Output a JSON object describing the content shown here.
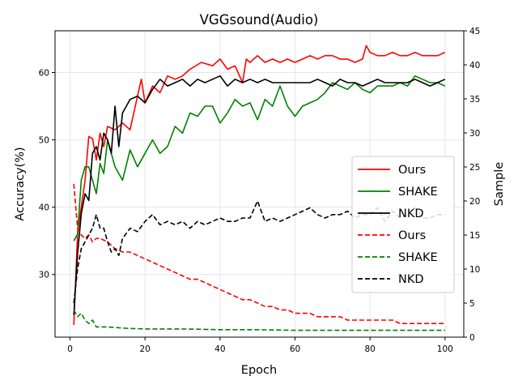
{
  "chart_data": {
    "type": "line",
    "title": "VGGsound(Audio)",
    "xlabel": "Epoch",
    "ylabel": "Accuracy(%)",
    "y2label": "Sample",
    "xlim": [
      -4,
      105
    ],
    "ylim": [
      20.7,
      66.2
    ],
    "y2lim": [
      0,
      45
    ],
    "xticks": [
      0,
      20,
      40,
      60,
      80,
      100
    ],
    "yticks": [
      30,
      40,
      50,
      60
    ],
    "y2ticks": [
      0,
      5,
      10,
      15,
      20,
      25,
      30,
      35,
      40,
      45
    ],
    "grid": true,
    "legend_position": "center-right",
    "legend": [
      {
        "label": "Ours",
        "color": "#ff0000",
        "dash": "solid"
      },
      {
        "label": "SHAKE",
        "color": "#008000",
        "dash": "solid"
      },
      {
        "label": "NKD",
        "color": "#000000",
        "dash": "solid"
      },
      {
        "label": "Ours",
        "color": "#ff0000",
        "dash": "dashed"
      },
      {
        "label": "SHAKE",
        "color": "#008000",
        "dash": "dashed"
      },
      {
        "label": "NKD",
        "color": "#000000",
        "dash": "dashed"
      }
    ],
    "series": [
      {
        "name": "Ours",
        "axis": "left",
        "color": "#ff0000",
        "dash": "solid",
        "x": [
          1,
          2,
          3,
          4,
          5,
          6,
          7,
          8,
          9,
          10,
          12,
          14,
          16,
          18,
          19,
          20,
          22,
          24,
          26,
          28,
          30,
          32,
          35,
          38,
          40,
          42,
          44,
          46,
          47,
          48,
          50,
          52,
          54,
          56,
          58,
          60,
          62,
          64,
          66,
          68,
          70,
          72,
          74,
          76,
          78,
          79,
          80,
          82,
          84,
          86,
          88,
          90,
          92,
          94,
          96,
          98,
          100
        ],
        "y": [
          22.5,
          36,
          40,
          44,
          50.5,
          50.2,
          47,
          51,
          49,
          52,
          51.5,
          52.5,
          51.5,
          56.5,
          59,
          55.5,
          58,
          57,
          59.5,
          59,
          59.5,
          60.5,
          61.5,
          61,
          62,
          60.5,
          61,
          58.5,
          62,
          61.5,
          62.5,
          61.5,
          62,
          61.5,
          62,
          61.5,
          62,
          62.5,
          62,
          62.5,
          62.5,
          62,
          62,
          61.5,
          62,
          64,
          63,
          62.5,
          62.5,
          63,
          62.5,
          62.5,
          63,
          62.5,
          62.5,
          62.5,
          63
        ]
      },
      {
        "name": "SHAKE",
        "axis": "left",
        "color": "#008000",
        "dash": "solid",
        "x": [
          1,
          2,
          3,
          4,
          5,
          6,
          7,
          8,
          9,
          10,
          12,
          14,
          16,
          18,
          20,
          22,
          24,
          26,
          28,
          30,
          32,
          34,
          36,
          38,
          40,
          42,
          44,
          46,
          48,
          50,
          52,
          54,
          56,
          58,
          60,
          62,
          64,
          66,
          68,
          70,
          72,
          74,
          76,
          78,
          80,
          82,
          84,
          86,
          88,
          90,
          92,
          94,
          96,
          98,
          100
        ],
        "y": [
          35,
          36,
          44,
          46,
          46,
          44,
          42,
          46.5,
          45,
          50,
          46,
          44,
          48.5,
          46,
          48,
          50,
          48,
          49,
          52,
          51,
          54,
          53.5,
          55,
          55,
          52.5,
          54,
          56,
          55,
          55.5,
          53,
          56,
          55,
          58,
          55,
          53.5,
          55,
          55.5,
          56,
          57,
          58.5,
          58,
          57.5,
          58.5,
          57.5,
          57,
          58,
          58,
          58,
          58.5,
          58,
          59.5,
          59,
          58.5,
          58.5,
          58
        ]
      },
      {
        "name": "NKD",
        "axis": "left",
        "color": "#000000",
        "dash": "solid",
        "x": [
          1,
          2,
          3,
          4,
          5,
          6,
          7,
          8,
          9,
          10,
          11,
          12,
          13,
          14,
          16,
          18,
          20,
          22,
          24,
          26,
          28,
          30,
          32,
          34,
          36,
          38,
          40,
          42,
          44,
          46,
          48,
          50,
          52,
          54,
          56,
          58,
          60,
          62,
          64,
          66,
          68,
          70,
          72,
          74,
          76,
          78,
          80,
          82,
          84,
          86,
          88,
          90,
          92,
          94,
          96,
          98,
          100
        ],
        "y": [
          24,
          33,
          39,
          42,
          41,
          48,
          49,
          47,
          51,
          50,
          48,
          55,
          49,
          54,
          56,
          56.5,
          55.5,
          57.5,
          59,
          58,
          58.5,
          59,
          58,
          59,
          58.5,
          59,
          59.5,
          58,
          59,
          58.5,
          59,
          58.5,
          59,
          58.5,
          58.5,
          58.5,
          58.5,
          58.5,
          58.5,
          59,
          58.5,
          58,
          59,
          58.5,
          58.5,
          58,
          58.5,
          59,
          58.5,
          58.5,
          58.5,
          58.5,
          59,
          58.5,
          58,
          58.5,
          59
        ]
      },
      {
        "name": "Ours",
        "axis": "right",
        "color": "#ff0000",
        "dash": "dashed",
        "x": [
          1,
          2,
          3,
          4,
          5,
          6,
          7,
          8,
          10,
          12,
          14,
          16,
          18,
          20,
          22,
          24,
          26,
          28,
          30,
          32,
          34,
          36,
          38,
          40,
          42,
          44,
          46,
          48,
          50,
          52,
          54,
          56,
          58,
          60,
          62,
          64,
          66,
          68,
          70,
          72,
          74,
          76,
          78,
          80,
          82,
          84,
          86,
          88,
          90,
          92,
          94,
          96,
          98,
          100
        ],
        "y": [
          22.5,
          16,
          15,
          14.5,
          15,
          14,
          14.5,
          14.5,
          14,
          13,
          12.5,
          12.5,
          12,
          11.5,
          11,
          10.5,
          10,
          9.5,
          9,
          8.5,
          8.5,
          8,
          7.5,
          7,
          6.5,
          6,
          5.5,
          5.5,
          5,
          4.5,
          4.5,
          4,
          4,
          3.5,
          3.5,
          3.5,
          3,
          3,
          3,
          3,
          2.5,
          2.5,
          2.5,
          2.5,
          2.5,
          2.5,
          2.5,
          2,
          2,
          2,
          2,
          2,
          2,
          2
        ]
      },
      {
        "name": "SHAKE",
        "axis": "right",
        "color": "#008000",
        "dash": "dashed",
        "x": [
          1,
          2,
          3,
          4,
          5,
          6,
          7,
          8,
          10,
          15,
          20,
          30,
          40,
          50,
          60,
          70,
          80,
          90,
          100
        ],
        "y": [
          4,
          3,
          3.5,
          2.5,
          2,
          2.5,
          1.5,
          1.5,
          1.5,
          1.3,
          1.2,
          1.2,
          1.1,
          1.1,
          1,
          1,
          1,
          1,
          1
        ]
      },
      {
        "name": "NKD",
        "axis": "right",
        "color": "#000000",
        "dash": "dashed",
        "x": [
          1,
          2,
          3,
          4,
          5,
          6,
          7,
          8,
          9,
          10,
          11,
          12,
          13,
          14,
          16,
          18,
          20,
          22,
          24,
          26,
          28,
          30,
          32,
          34,
          36,
          38,
          40,
          42,
          44,
          46,
          48,
          50,
          52,
          54,
          56,
          58,
          60,
          62,
          64,
          66,
          68,
          70,
          72,
          74,
          76,
          78,
          80,
          82,
          84,
          86,
          88,
          90,
          92,
          94,
          96,
          98,
          100
        ],
        "y": [
          5,
          10,
          13,
          14,
          15,
          16,
          18,
          16,
          16,
          14,
          12.5,
          13,
          12,
          14.5,
          16,
          15.5,
          17,
          18,
          16.5,
          17,
          16.5,
          17,
          16,
          17,
          16.5,
          17,
          17.5,
          17,
          17,
          17.5,
          17.5,
          20,
          17,
          17.5,
          17,
          17.5,
          18,
          18.5,
          19,
          18,
          17.5,
          18,
          18,
          18.5,
          17.5,
          18,
          18,
          19,
          17,
          18.5,
          17.5,
          18,
          19,
          17.5,
          17.5,
          18,
          18
        ]
      }
    ]
  }
}
